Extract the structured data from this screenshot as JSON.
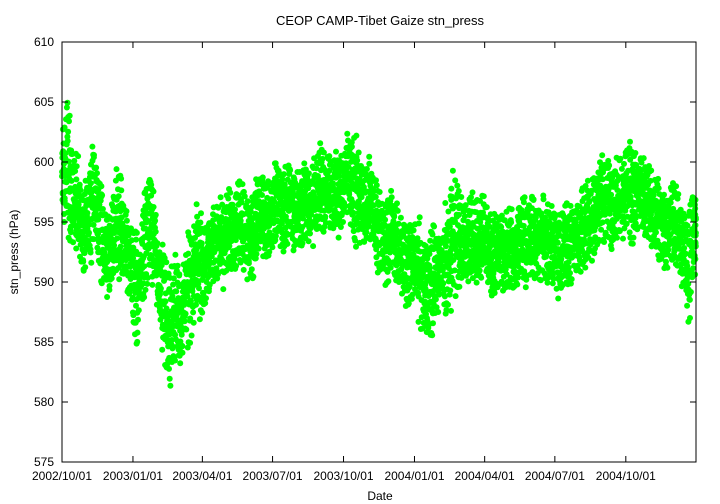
{
  "chart_data": {
    "type": "scatter",
    "title": "CEOP CAMP-Tibet Gaize  stn_press",
    "xlabel": "Date",
    "ylabel": "stn_press (hPa)",
    "xlim": [
      "2002/10/01",
      "2004/12/31"
    ],
    "ylim": [
      575,
      610
    ],
    "yticks": [
      575,
      580,
      585,
      590,
      595,
      600,
      605,
      610
    ],
    "xticks": [
      "2002/10/01",
      "2003/01/01",
      "2003/04/01",
      "2003/07/01",
      "2003/10/01",
      "2004/01/01",
      "2004/04/01",
      "2004/07/01",
      "2004/10/01"
    ],
    "grid": false,
    "legend": "none",
    "point_color": "#00ff00",
    "series": [
      {
        "x": [
          "2002/10/01",
          "2002/10/08",
          "2002/10/15",
          "2002/10/22",
          "2002/10/29",
          "2002/11/05",
          "2002/11/12",
          "2002/11/19",
          "2002/11/26",
          "2002/12/03",
          "2002/12/10",
          "2002/12/17",
          "2002/12/24",
          "2002/12/31",
          "2003/01/07",
          "2003/01/14",
          "2003/01/21",
          "2003/01/28",
          "2003/02/04",
          "2003/02/11",
          "2003/02/18",
          "2003/02/25",
          "2003/03/04",
          "2003/03/11",
          "2003/03/18",
          "2003/03/25",
          "2003/04/01",
          "2003/04/08",
          "2003/04/15",
          "2003/04/22",
          "2003/04/29",
          "2003/05/06",
          "2003/05/13",
          "2003/05/20",
          "2003/05/27",
          "2003/06/03",
          "2003/06/10",
          "2003/06/17",
          "2003/06/24",
          "2003/07/01",
          "2003/07/08",
          "2003/07/15",
          "2003/07/22",
          "2003/07/29",
          "2003/08/05",
          "2003/08/12",
          "2003/08/19",
          "2003/08/26",
          "2003/09/02",
          "2003/09/09",
          "2003/09/16",
          "2003/09/23",
          "2003/09/30",
          "2003/10/07",
          "2003/10/14",
          "2003/10/21",
          "2003/10/28",
          "2003/11/04",
          "2003/11/11",
          "2003/11/18",
          "2003/11/25",
          "2003/12/02",
          "2003/12/09",
          "2003/12/16",
          "2003/12/23",
          "2003/12/30",
          "2004/01/06",
          "2004/01/13",
          "2004/01/20",
          "2004/01/27",
          "2004/02/03",
          "2004/02/10",
          "2004/02/17",
          "2004/02/24",
          "2004/03/02",
          "2004/03/09",
          "2004/03/16",
          "2004/03/23",
          "2004/03/30",
          "2004/04/06",
          "2004/04/13",
          "2004/04/20",
          "2004/04/27",
          "2004/05/04",
          "2004/05/11",
          "2004/05/18",
          "2004/05/25",
          "2004/06/01",
          "2004/06/08",
          "2004/06/15",
          "2004/06/22",
          "2004/06/29",
          "2004/07/06",
          "2004/07/13",
          "2004/07/20",
          "2004/07/27",
          "2004/08/03",
          "2004/08/10",
          "2004/08/17",
          "2004/08/24",
          "2004/08/31",
          "2004/09/07",
          "2004/09/14",
          "2004/09/21",
          "2004/09/28",
          "2004/10/05",
          "2004/10/12",
          "2004/10/19",
          "2004/10/26",
          "2004/11/02",
          "2004/11/09",
          "2004/11/16",
          "2004/11/23",
          "2004/11/30",
          "2004/12/07",
          "2004/12/14",
          "2004/12/21",
          "2004/12/28"
        ],
        "y": [
          598,
          600,
          597,
          596,
          594,
          596,
          597,
          595,
          592,
          593,
          595,
          594,
          593,
          591,
          589,
          592,
          595,
          594,
          590,
          588,
          586,
          588,
          587,
          589,
          590,
          592,
          591,
          592,
          593,
          594,
          593,
          595,
          594,
          595,
          594,
          593,
          595,
          596,
          595,
          596,
          597,
          596,
          597,
          596,
          596,
          597,
          596,
          597,
          598,
          597,
          598,
          597,
          598,
          599,
          598,
          597,
          596,
          597,
          595,
          594,
          593,
          594,
          593,
          592,
          591,
          592,
          591,
          590,
          589,
          590,
          591,
          592,
          593,
          594,
          593,
          593,
          594,
          593,
          594,
          593,
          592,
          593,
          592,
          593,
          592,
          594,
          593,
          594,
          593,
          594,
          593,
          593,
          592,
          593,
          593,
          594,
          594,
          595,
          595,
          596,
          597,
          597,
          596,
          597,
          597,
          598,
          597,
          598,
          597,
          596,
          596,
          595,
          594,
          595,
          594,
          593,
          591,
          594
        ],
        "spread": [
          4,
          5,
          4,
          3,
          3,
          4,
          3,
          4,
          3,
          3,
          4,
          3,
          3,
          4,
          3,
          4,
          4,
          3,
          4,
          4,
          4,
          4,
          3,
          4,
          4,
          4,
          3,
          3,
          3,
          3,
          3,
          3,
          3,
          3,
          3,
          3,
          3,
          3,
          3,
          3,
          3,
          3,
          3,
          3,
          3,
          3,
          3,
          3,
          3,
          3,
          3,
          3,
          3,
          3,
          4,
          3,
          3,
          3,
          3,
          3,
          3,
          3,
          3,
          3,
          3,
          3,
          4,
          3,
          4,
          3,
          3,
          4,
          5,
          4,
          3,
          3,
          3,
          3,
          3,
          3,
          3,
          3,
          3,
          3,
          3,
          3,
          3,
          3,
          3,
          3,
          3,
          3,
          3,
          3,
          3,
          3,
          3,
          3,
          3,
          3,
          3,
          3,
          3,
          3,
          3,
          4,
          3,
          3,
          3,
          3,
          3,
          3,
          3,
          3,
          3,
          3,
          4,
          3
        ]
      }
    ]
  }
}
